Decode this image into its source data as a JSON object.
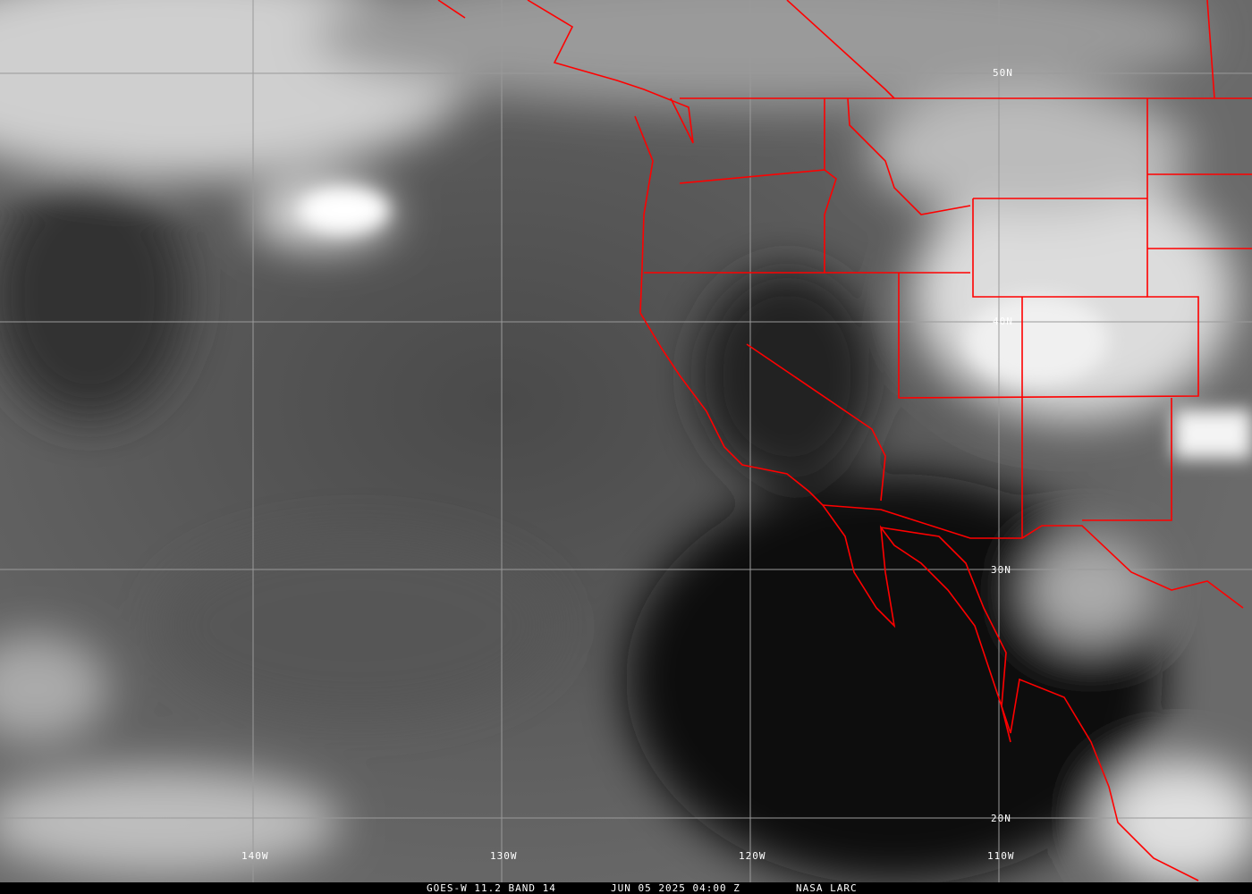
{
  "caption": {
    "satellite": "GOES-W 11.2 BAND 14",
    "datetime": "JUN 05 2025 04:00 Z",
    "source": "NASA LARC"
  },
  "latitude_labels": [
    "50N",
    "40N",
    "30N",
    "20N"
  ],
  "longitude_labels": [
    "140W",
    "130W",
    "120W",
    "110W"
  ],
  "colors": {
    "borders": "#ff0000",
    "grid": "#9a9a9a"
  }
}
